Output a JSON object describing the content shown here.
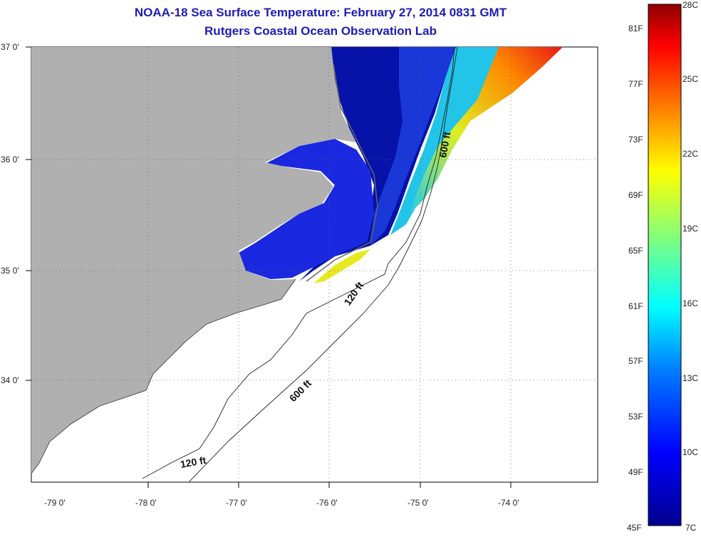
{
  "title_line1": "NOAA-18 Sea Surface Temperature:  February 27, 2014 0831 GMT",
  "title_line2": "Rutgers Coastal Ocean Observation Lab",
  "lat_labels": [
    "37 0'",
    "36 0'",
    "35 0'",
    "34 0'"
  ],
  "lon_labels": [
    "-79 0'",
    "-78 0'",
    "-77 0'",
    "-76 0'",
    "-75 0'",
    "-74 0'"
  ],
  "contour_labels": [
    "600 ft",
    "120 ft",
    "600 ft",
    "120 ft"
  ],
  "colorbar": {
    "fahrenheit": [
      "81F",
      "77F",
      "73F",
      "69F",
      "65F",
      "61F",
      "57F",
      "53F",
      "49F",
      "45F"
    ],
    "celsius": [
      "28C",
      "25C",
      "22C",
      "19C",
      "16C",
      "13C",
      "10C",
      "7C"
    ]
  },
  "colors": {
    "land": "#b0b0b0",
    "title": "#1c1cb4",
    "cold": "#0a0a9a",
    "warm": "#e8281a"
  }
}
